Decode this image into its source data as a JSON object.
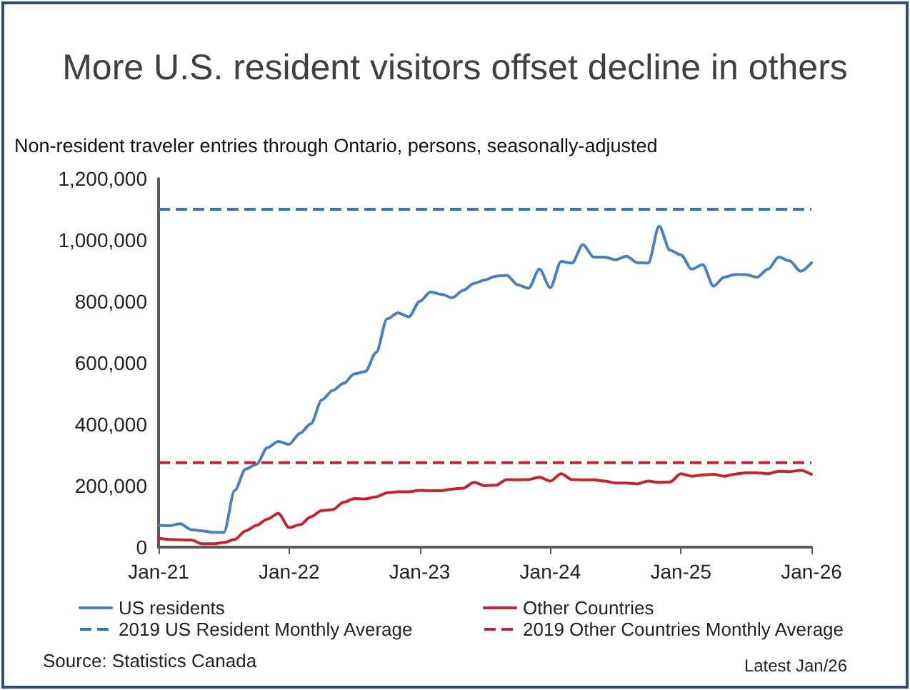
{
  "chart_data": {
    "type": "line",
    "title": "More U.S. resident visitors offset decline in others",
    "ylabel": "Non-resident traveler entries through Ontario, persons, seasonally-adjusted",
    "categories": [
      "Jan-21",
      null,
      null,
      null,
      null,
      null,
      null,
      null,
      null,
      null,
      null,
      null,
      "Jan-22",
      null,
      null,
      null,
      null,
      null,
      null,
      null,
      null,
      null,
      null,
      null,
      "Jan-23",
      null,
      null,
      null,
      null,
      null,
      null,
      null,
      null,
      null,
      null,
      null,
      "Jan-24",
      null,
      null,
      null,
      null,
      null,
      null,
      null,
      null,
      null,
      null,
      null,
      "Jan-25",
      null,
      null,
      null,
      null,
      null,
      null,
      null,
      null,
      null,
      null,
      null,
      "Jan-26"
    ],
    "series": [
      {
        "name": "US residents",
        "color": "#4a7fc1",
        "values": [
          71000,
          70000,
          76000,
          57000,
          53000,
          48000,
          48000,
          185000,
          254000,
          270000,
          324000,
          344000,
          335000,
          371000,
          402000,
          479000,
          510000,
          533000,
          564000,
          572000,
          634000,
          743000,
          763000,
          750000,
          800000,
          831000,
          823000,
          812000,
          836000,
          859000,
          870000,
          882000,
          885000,
          854000,
          843000,
          905000,
          845000,
          930000,
          925000,
          985000,
          944000,
          944000,
          936000,
          947000,
          926000,
          925000,
          1045000,
          967000,
          952000,
          905000,
          920000,
          850000,
          879000,
          888000,
          887000,
          879000,
          905000,
          944000,
          932000,
          898000,
          926000
        ]
      },
      {
        "name": "Other Countries",
        "color": "#c8232a",
        "values": [
          29000,
          25000,
          24000,
          23000,
          11000,
          11000,
          15000,
          25000,
          53000,
          71000,
          91000,
          110000,
          64000,
          73000,
          99000,
          119000,
          122000,
          146000,
          158000,
          157000,
          164000,
          177000,
          180000,
          180000,
          185000,
          184000,
          184000,
          189000,
          192000,
          211000,
          200000,
          202000,
          220000,
          219000,
          220000,
          228000,
          215000,
          239000,
          220000,
          219000,
          219000,
          215000,
          209000,
          209000,
          206000,
          215000,
          211000,
          212000,
          239000,
          231000,
          235000,
          237000,
          231000,
          238000,
          242000,
          242000,
          239000,
          247000,
          246000,
          250000,
          237000
        ]
      }
    ],
    "ref_lines": [
      {
        "axis": "y",
        "value": 1100000,
        "label": "2019 US Resident Monthly Average",
        "color": "#2e75c6",
        "line_style": "dashed"
      },
      {
        "axis": "y",
        "value": 275000,
        "label": "2019 Other Countries Monthly Average",
        "color": "#c8232a",
        "line_style": "dashed"
      }
    ],
    "ylim": [
      0,
      1200000
    ],
    "yticks": [
      0,
      {
        "value": 200000,
        "label": "200,000"
      },
      {
        "value": 400000,
        "label": "400,000"
      },
      {
        "value": 600000,
        "label": "600,000"
      },
      {
        "value": 800000,
        "label": "800,000"
      },
      {
        "value": 1000000,
        "label": "1,000,000"
      },
      {
        "value": 1200000,
        "label": "1,200,000"
      }
    ],
    "grid": false,
    "legend": "bottom",
    "marker": "none",
    "line_style": "solid",
    "annotations": [
      "Source: Statistics Canada",
      "Latest Jan/26"
    ]
  }
}
